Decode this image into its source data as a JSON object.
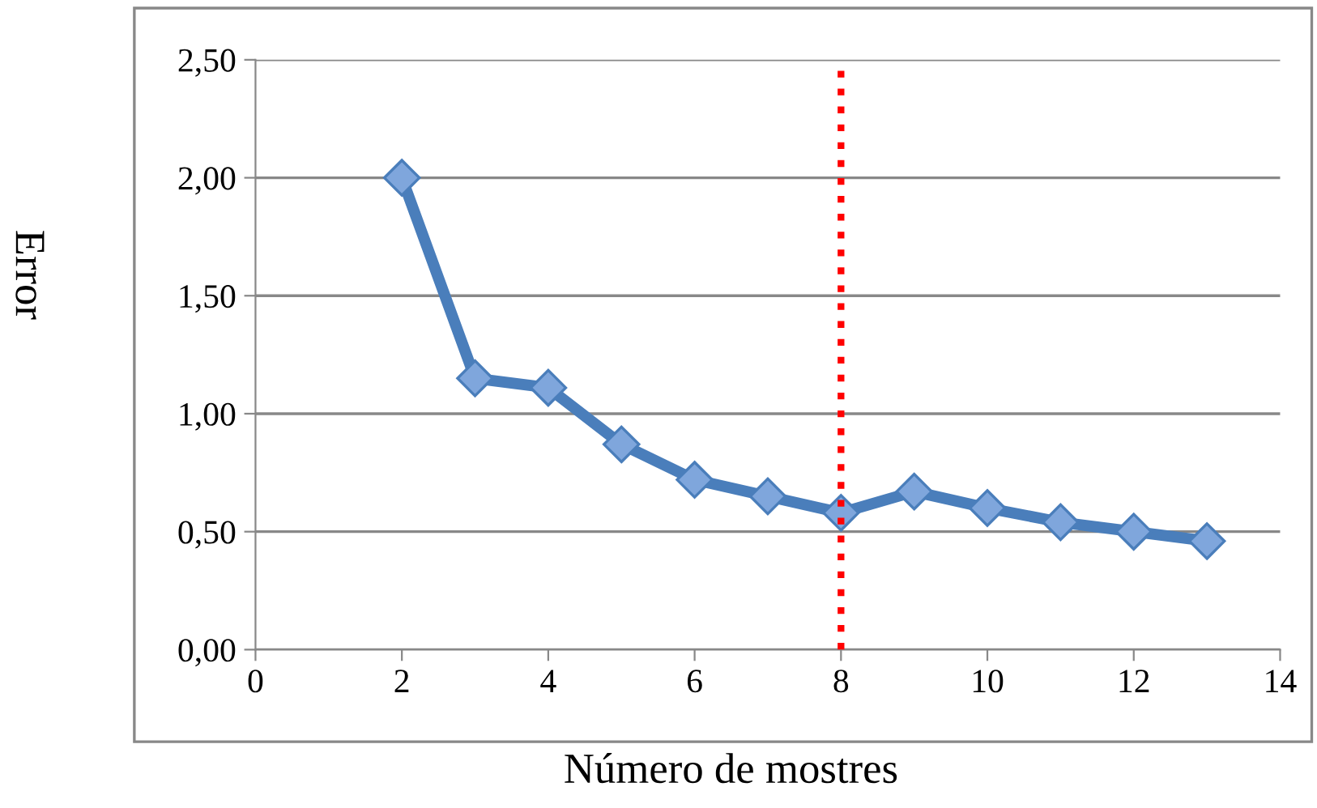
{
  "chart_data": {
    "type": "line",
    "xlabel": "Número de mostres",
    "ylabel": "Error",
    "x": [
      2,
      3,
      4,
      5,
      6,
      7,
      8,
      9,
      10,
      11,
      12,
      13
    ],
    "series": [
      {
        "color": "#4a7ebb",
        "values": [
          2.0,
          1.15,
          1.11,
          0.87,
          0.72,
          0.65,
          0.58,
          0.67,
          0.6,
          0.54,
          0.5,
          0.46
        ]
      }
    ],
    "marker": "diamond",
    "line_style": "solid",
    "xlim": [
      0,
      14
    ],
    "xticks": [
      0,
      2,
      4,
      6,
      8,
      10,
      12,
      14
    ],
    "ylim": [
      0,
      2.5
    ],
    "yticks": [
      {
        "value": 0,
        "label": "0,00"
      },
      {
        "value": 0.5,
        "label": "0,50"
      },
      {
        "value": 1.0,
        "label": "1,00"
      },
      {
        "value": 1.5,
        "label": "1,50"
      },
      {
        "value": 2.0,
        "label": "2,00"
      },
      {
        "value": 2.5,
        "label": "2,50"
      }
    ],
    "grid": "y",
    "legend": false,
    "ref_lines": [
      {
        "axis": "x",
        "value": 8,
        "color": "#ff0000",
        "line_style": "dotted"
      }
    ]
  }
}
